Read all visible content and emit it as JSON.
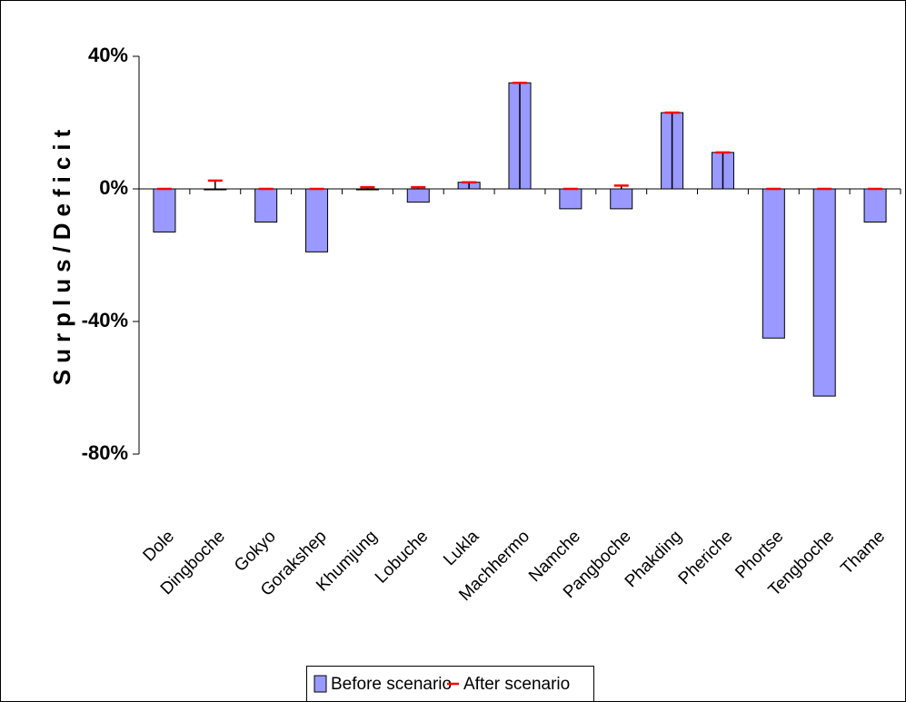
{
  "chart_data": {
    "type": "bar",
    "y_label": "Surplus/Deficit",
    "categories": [
      "Dole",
      "Dingboche",
      "Gokyo",
      "Gorakshep",
      "Khumjung",
      "Lobuche",
      "Lukla",
      "Machhermo",
      "Namche",
      "Pangboche",
      "Phakding",
      "Pheriche",
      "Phortse",
      "Tengboche",
      "Thame"
    ],
    "series": [
      {
        "name": "Before scenario",
        "color": "#9999ff",
        "values": [
          -13,
          0,
          -10,
          -19,
          0,
          -4,
          2,
          32,
          -6,
          -6,
          23,
          11,
          -45,
          -62.5,
          -10
        ]
      },
      {
        "name": "After scenario",
        "color": "#ff0000",
        "values": [
          0,
          2.5,
          0,
          0,
          0.5,
          0.5,
          2,
          32,
          0,
          1,
          23,
          11,
          0,
          0,
          0
        ]
      }
    ],
    "ylim": [
      -80,
      40
    ],
    "yticks": [
      {
        "value": -80,
        "label": "-80%"
      },
      {
        "value": -40,
        "label": "-40%"
      },
      {
        "value": 0,
        "label": "0%"
      },
      {
        "value": 40,
        "label": "40%"
      }
    ],
    "legend": "bottom"
  }
}
